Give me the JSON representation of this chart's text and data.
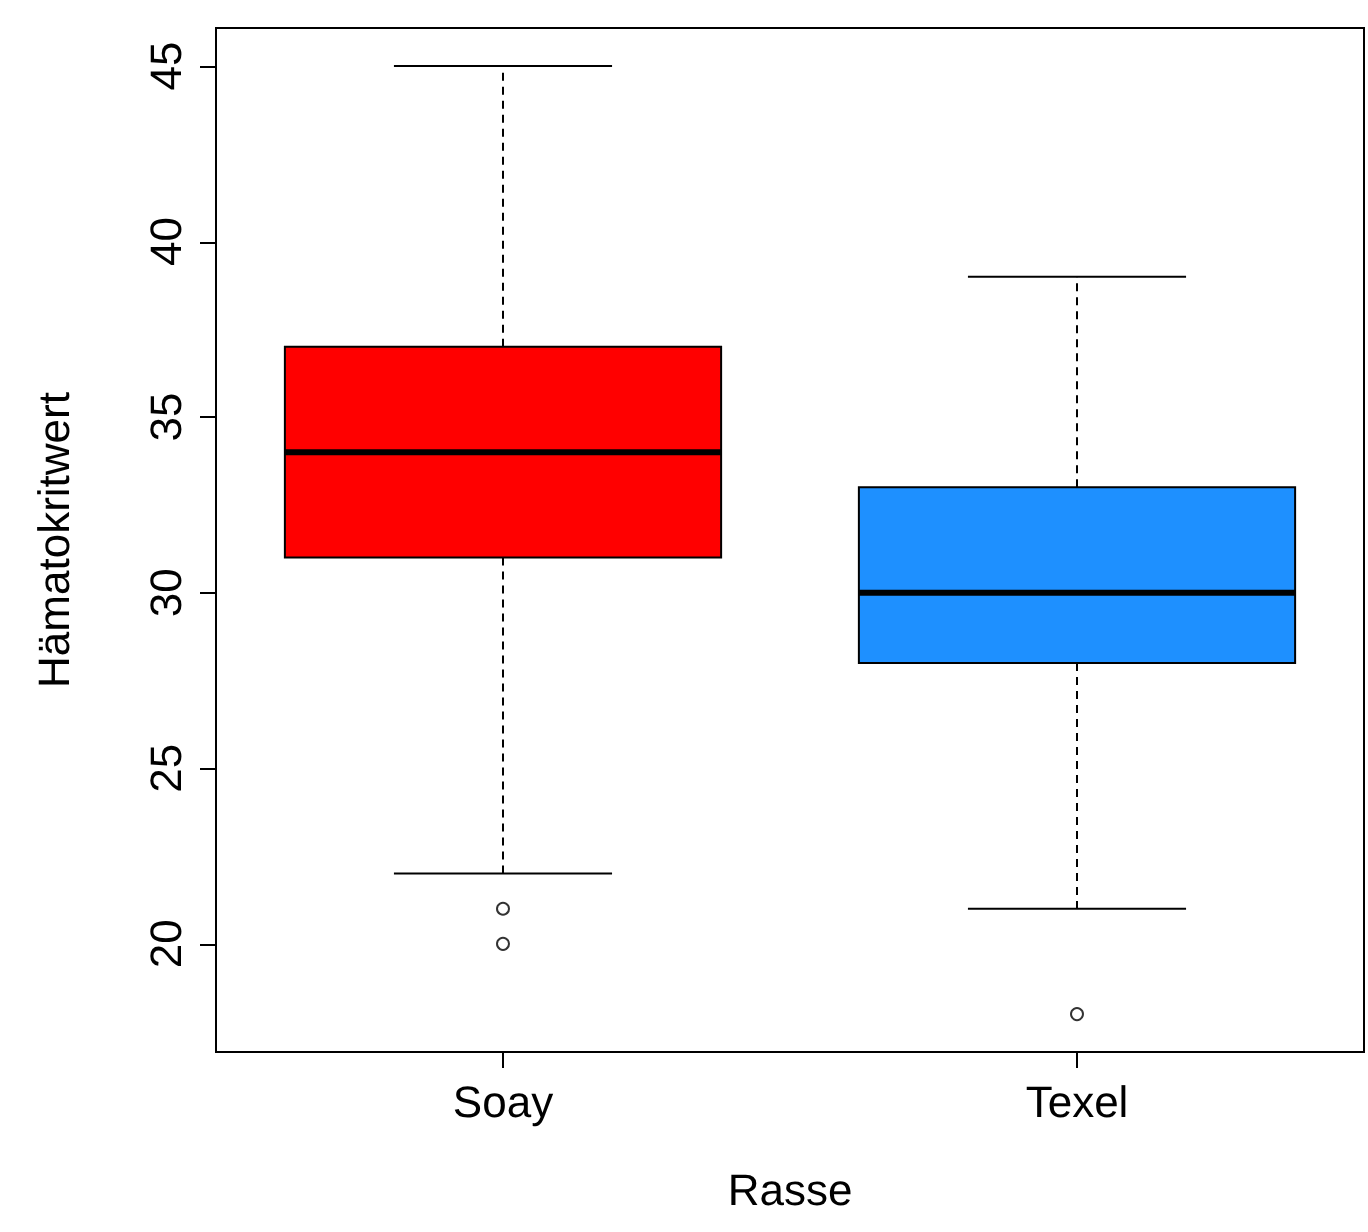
{
  "chart_data": {
    "type": "box",
    "xlabel": "Rasse",
    "ylabel": "Hämatokritwert",
    "categories": [
      "Soay",
      "Texel"
    ],
    "colors": [
      "#ff0000",
      "#1e90ff"
    ],
    "boxes": [
      {
        "low": 22,
        "q1": 31,
        "median": 34,
        "q3": 37,
        "high": 45,
        "outliers": [
          21,
          20
        ]
      },
      {
        "low": 21,
        "q1": 28,
        "median": 30,
        "q3": 33,
        "high": 39,
        "outliers": [
          18
        ]
      }
    ],
    "ylim": [
      16.92,
      46.08
    ],
    "yticks": [
      20,
      25,
      30,
      35,
      40,
      45
    ],
    "grid": false,
    "legend": false
  }
}
